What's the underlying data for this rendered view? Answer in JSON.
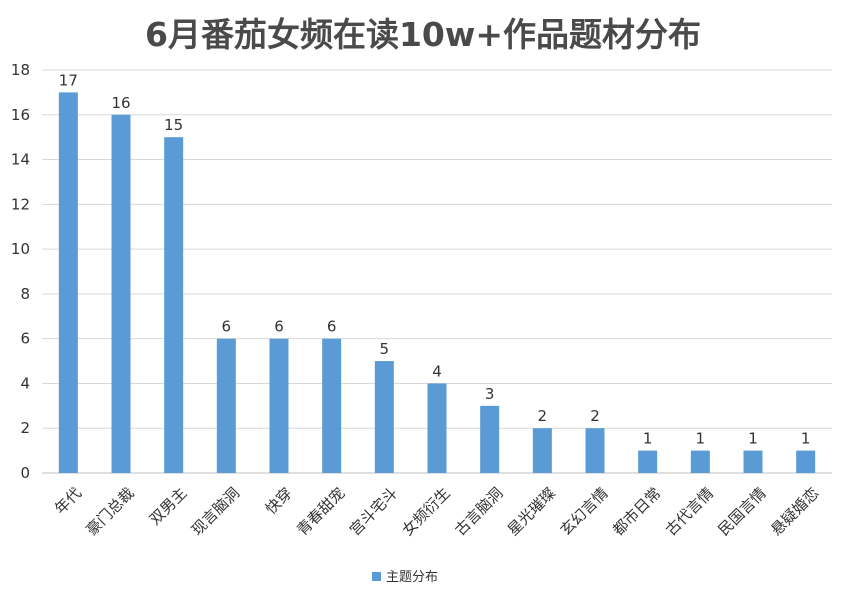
{
  "chart_data": {
    "type": "bar",
    "title": "6月番茄女频在读10w+作品题材分布",
    "categories": [
      "年代",
      "豪门总裁",
      "双男主",
      "现言脑洞",
      "快穿",
      "青春甜宠",
      "宫斗宅斗",
      "女频衍生",
      "古言脑洞",
      "星光璀璨",
      "玄幻言情",
      "都市日常",
      "古代言情",
      "民国言情",
      "悬疑婚恋"
    ],
    "values": [
      17,
      16,
      15,
      6,
      6,
      6,
      5,
      4,
      3,
      2,
      2,
      1,
      1,
      1,
      1
    ],
    "series": [
      {
        "name": "主题分布",
        "values": [
          17,
          16,
          15,
          6,
          6,
          6,
          5,
          4,
          3,
          2,
          2,
          1,
          1,
          1,
          1
        ]
      }
    ],
    "ylim": [
      0,
      18
    ],
    "yticks": [
      0,
      2,
      4,
      6,
      8,
      10,
      12,
      14,
      16,
      18
    ],
    "grid": true,
    "legend_position": "bottom",
    "bar_color": "#5b9bd5"
  }
}
